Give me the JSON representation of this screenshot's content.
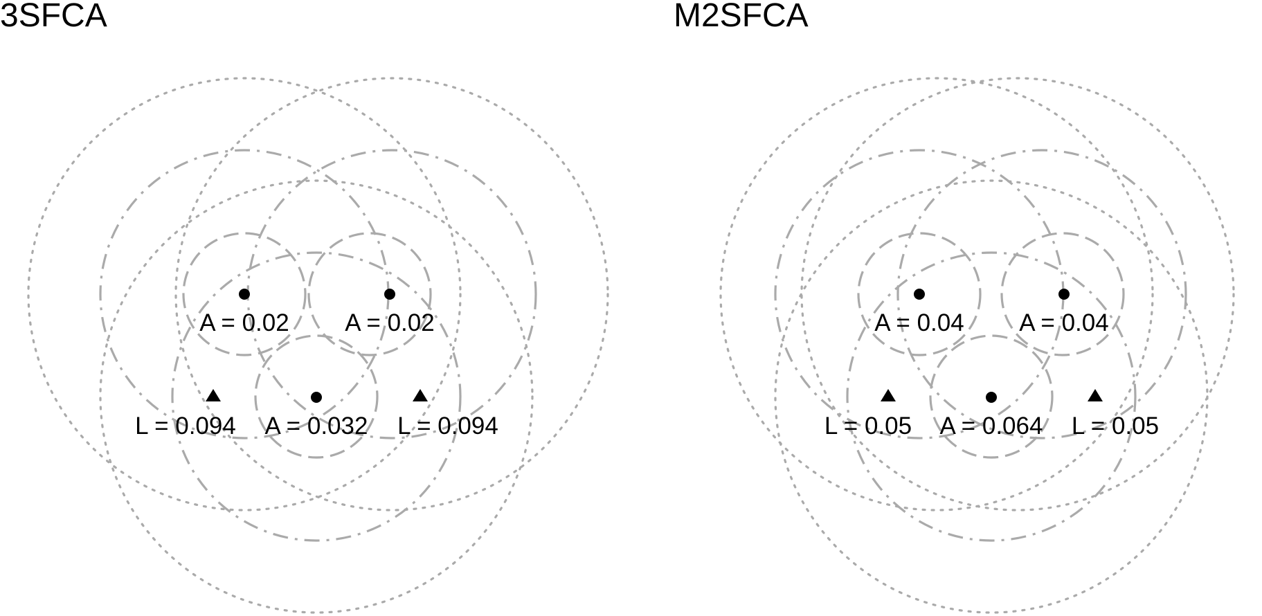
{
  "figure": {
    "colors": {
      "ring": "#aaaaaa",
      "marker": "#000000",
      "text": "#000000"
    },
    "ring_styles": [
      "dashed",
      "dot-dash",
      "dotted"
    ],
    "panels": [
      {
        "id": "3sfca",
        "title": "3SFCA",
        "nodes": [
          {
            "kind": "circle",
            "label": "A = 0.02"
          },
          {
            "kind": "circle",
            "label": "A = 0.02"
          },
          {
            "kind": "circle",
            "label": "A = 0.032"
          },
          {
            "kind": "triangle",
            "label": "L = 0.094"
          },
          {
            "kind": "triangle",
            "label": "L = 0.094"
          }
        ]
      },
      {
        "id": "m2sfca",
        "title": "M2SFCA",
        "nodes": [
          {
            "kind": "circle",
            "label": "A = 0.04"
          },
          {
            "kind": "circle",
            "label": "A = 0.04"
          },
          {
            "kind": "circle",
            "label": "A = 0.064"
          },
          {
            "kind": "triangle",
            "label": "L = 0.05"
          },
          {
            "kind": "triangle",
            "label": "L = 0.05"
          }
        ]
      }
    ]
  }
}
